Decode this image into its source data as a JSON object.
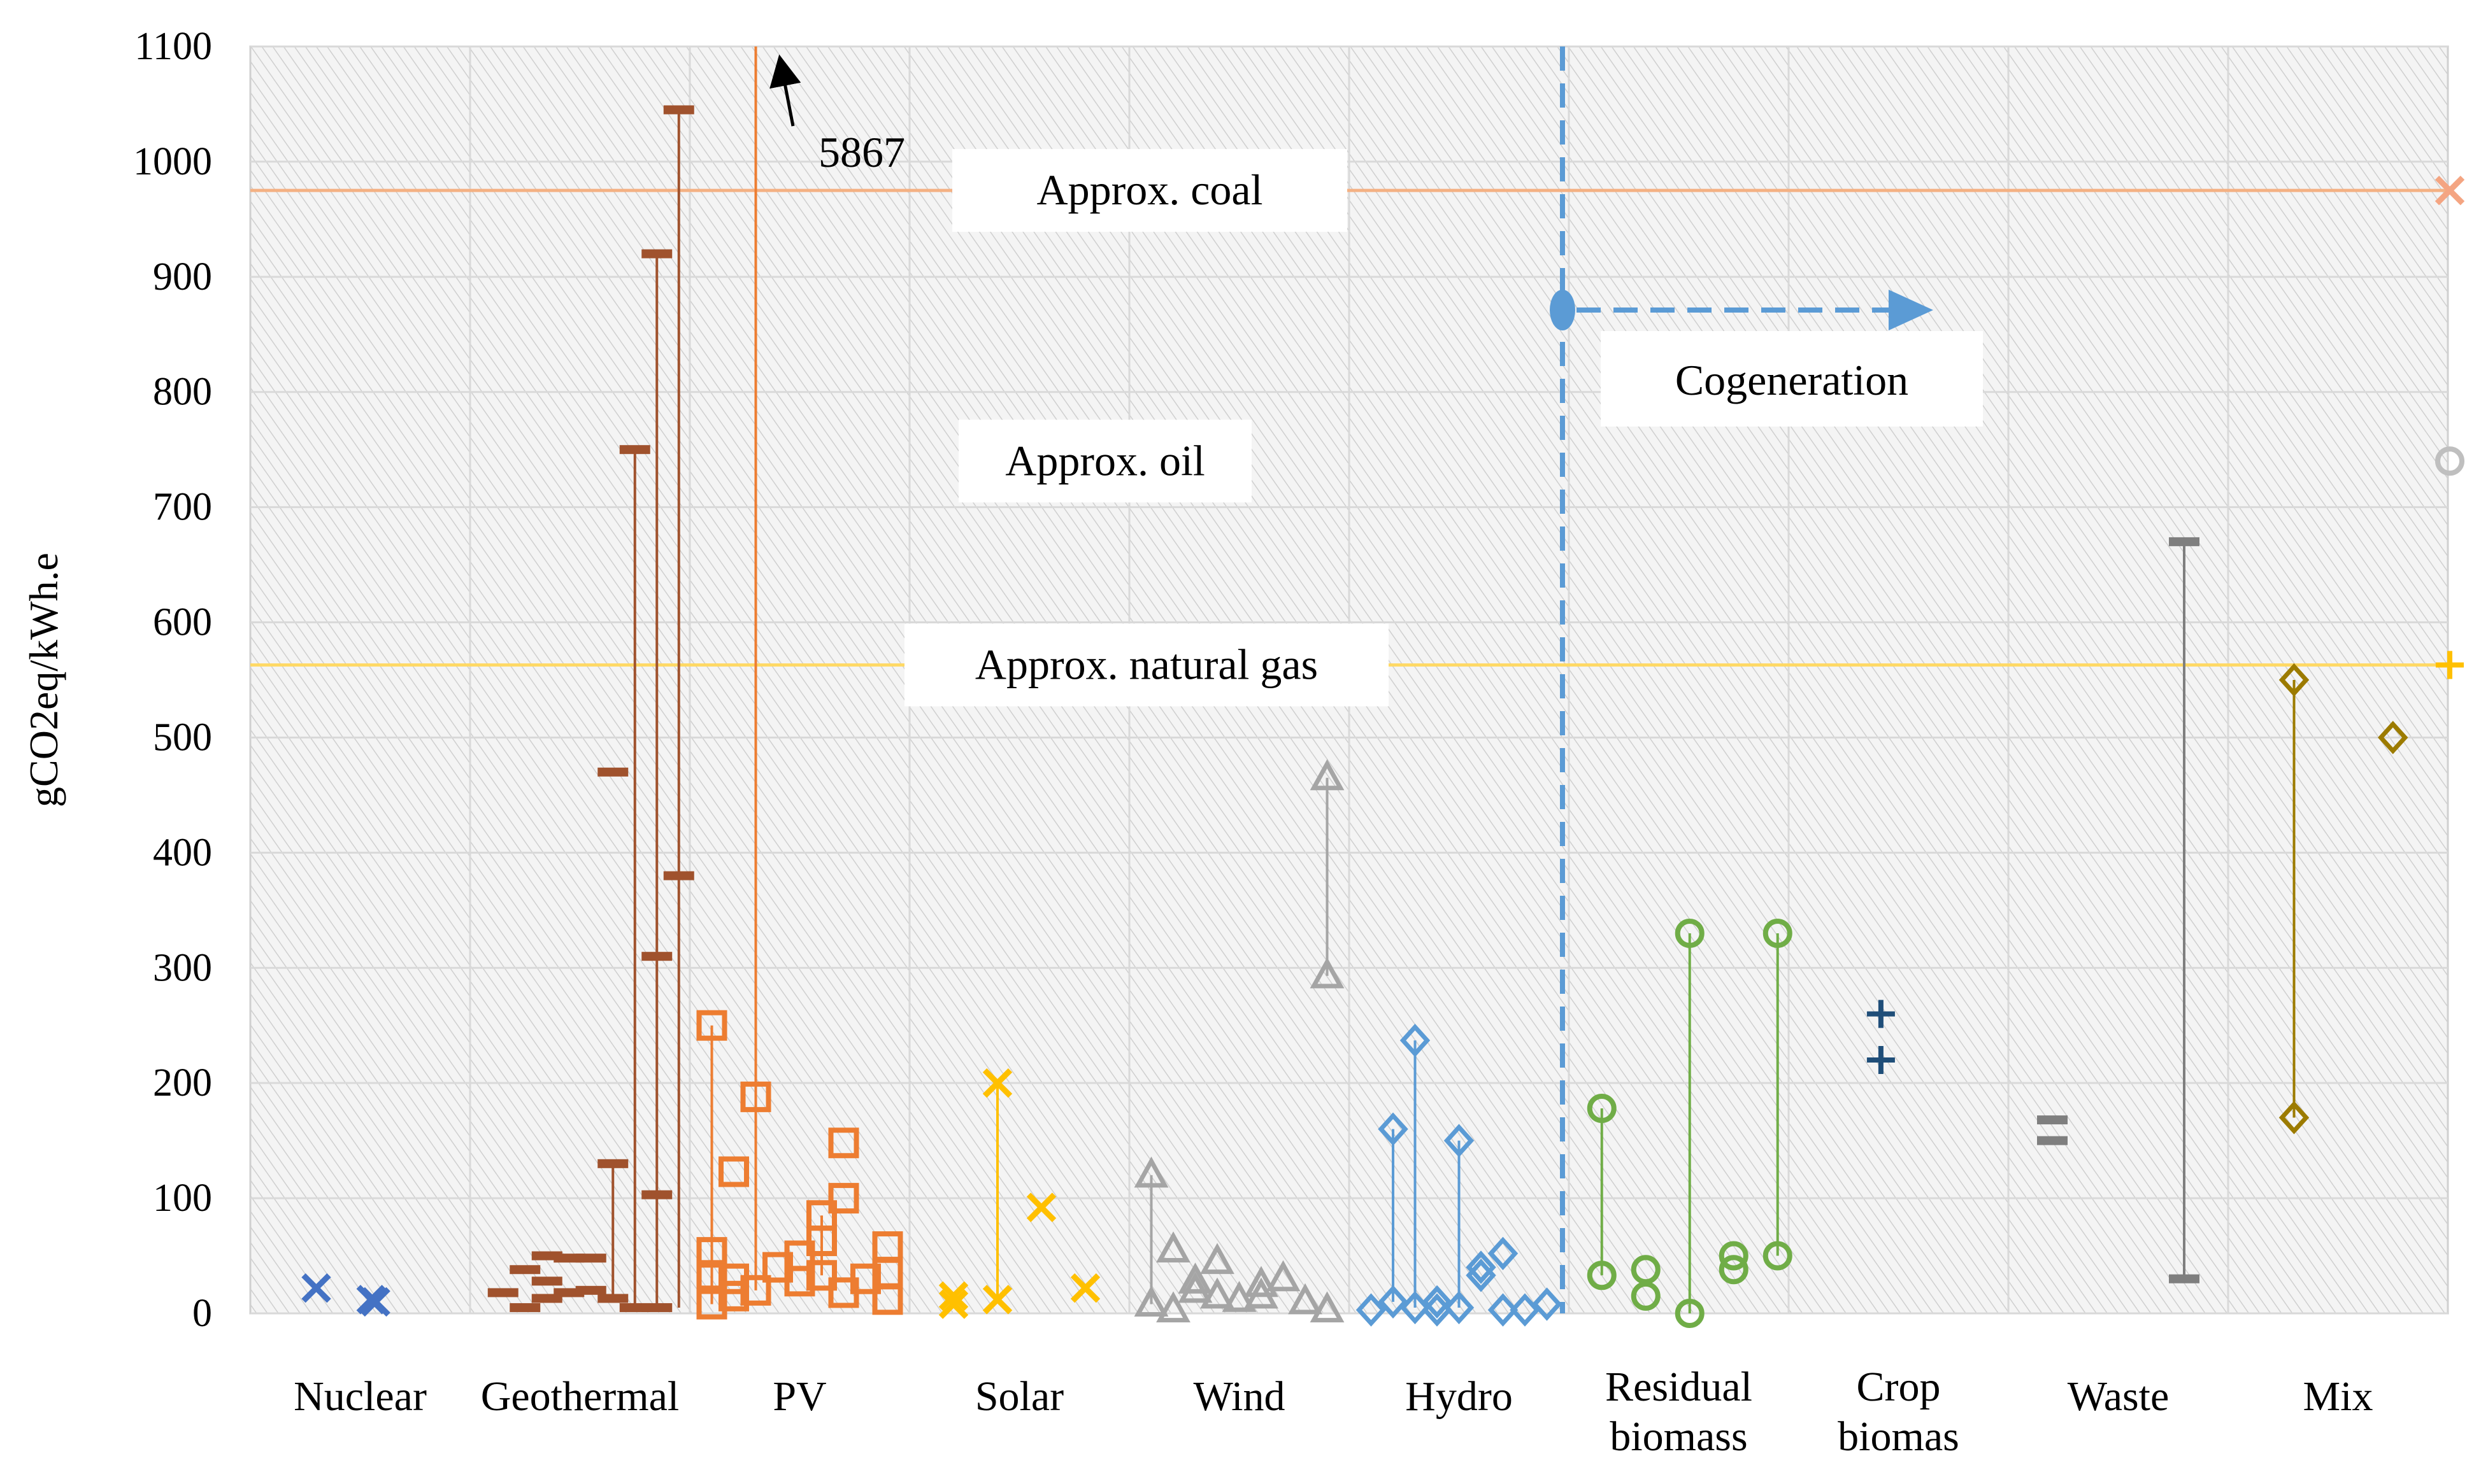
{
  "chart_data": {
    "type": "scatter",
    "title": "",
    "xlabel": "",
    "ylabel": "gCO2eq/kWh.e",
    "ylim": [
      0,
      1100
    ],
    "y_ticks": [
      "0",
      "100",
      "200",
      "300",
      "400",
      "500",
      "600",
      "700",
      "800",
      "900",
      "1000",
      "1100"
    ],
    "grid": true,
    "categories": [
      {
        "label": "Nuclear"
      },
      {
        "label": "Geothermal"
      },
      {
        "label": "PV"
      },
      {
        "label": "Solar"
      },
      {
        "label": "Wind"
      },
      {
        "label": "Hydro"
      },
      {
        "label": "Residual\nbiomass"
      },
      {
        "label": "Crop\nbiomas"
      },
      {
        "label": "Waste"
      },
      {
        "label": "Mix"
      }
    ],
    "reference_lines": [
      {
        "name": "coal",
        "value": 975,
        "label": "Approx. coal",
        "color": "#F4B183",
        "marker": "x",
        "marker_color": "#F4A582"
      },
      {
        "name": "oil",
        "value": 740,
        "label": "Approx. oil",
        "color": "#BFBFBF",
        "marker": "circle",
        "marker_color": "#BFBFBF"
      },
      {
        "name": "natural_gas",
        "value": 563,
        "label": "Approx. natural gas",
        "color": "#FFD966",
        "marker": "plus",
        "marker_color": "#FFC000"
      }
    ],
    "annotations": [
      {
        "text": "5867",
        "note": "off-scale PV value"
      },
      {
        "text": "Cogeneration",
        "note": "applies to biomass, waste and mix"
      }
    ],
    "series": [
      {
        "name": "Nuclear",
        "marker": "x",
        "color": "#4472C4",
        "points": [
          [
            0.3,
            22
          ],
          [
            0.55,
            12
          ],
          [
            0.57,
            10
          ]
        ],
        "ranges": []
      },
      {
        "name": "Geothermal",
        "marker": "dash",
        "color": "#A0522D",
        "points": [
          [
            0.15,
            18
          ],
          [
            0.25,
            5
          ],
          [
            0.25,
            38
          ],
          [
            0.35,
            13
          ],
          [
            0.35,
            28
          ],
          [
            0.35,
            50
          ],
          [
            0.45,
            18
          ],
          [
            0.45,
            48
          ],
          [
            0.55,
            48
          ],
          [
            0.55,
            20
          ],
          [
            0.65,
            130
          ],
          [
            0.65,
            470
          ],
          [
            0.65,
            13
          ],
          [
            0.75,
            750
          ],
          [
            0.75,
            5
          ],
          [
            0.85,
            310
          ],
          [
            0.85,
            920
          ],
          [
            0.85,
            103
          ],
          [
            0.85,
            5
          ],
          [
            0.95,
            380
          ],
          [
            0.95,
            1045
          ]
        ],
        "ranges": [
          [
            0.65,
            13,
            130
          ],
          [
            0.75,
            5,
            750
          ],
          [
            0.85,
            5,
            920
          ],
          [
            0.95,
            5,
            1045
          ]
        ]
      },
      {
        "name": "PV",
        "marker": "square",
        "color": "#ED7D31",
        "points": [
          [
            0.1,
            250
          ],
          [
            0.1,
            53
          ],
          [
            0.1,
            33
          ],
          [
            0.1,
            8
          ],
          [
            0.2,
            123
          ],
          [
            0.2,
            30
          ],
          [
            0.2,
            15
          ],
          [
            0.3,
            188
          ],
          [
            0.3,
            20
          ],
          [
            0.4,
            40
          ],
          [
            0.5,
            50
          ],
          [
            0.5,
            28
          ],
          [
            0.6,
            85
          ],
          [
            0.6,
            63
          ],
          [
            0.6,
            33
          ],
          [
            0.7,
            148
          ],
          [
            0.7,
            100
          ],
          [
            0.7,
            18
          ],
          [
            0.8,
            30
          ],
          [
            0.9,
            58
          ],
          [
            0.9,
            35
          ],
          [
            0.9,
            12
          ]
        ],
        "ranges": [
          [
            0.1,
            8,
            250
          ],
          [
            0.3,
            20,
            5867
          ],
          [
            0.6,
            33,
            85
          ]
        ]
      },
      {
        "name": "Solar",
        "marker": "x",
        "color": "#FFC000",
        "points": [
          [
            0.2,
            15
          ],
          [
            0.2,
            8
          ],
          [
            0.4,
            200
          ],
          [
            0.4,
            12
          ],
          [
            0.6,
            92
          ],
          [
            0.8,
            22
          ]
        ],
        "ranges": [
          [
            0.4,
            12,
            200
          ]
        ]
      },
      {
        "name": "Wind",
        "marker": "triangle",
        "color": "#A5A5A5",
        "points": [
          [
            0.1,
            120
          ],
          [
            0.1,
            8
          ],
          [
            0.2,
            55
          ],
          [
            0.2,
            3
          ],
          [
            0.3,
            28
          ],
          [
            0.3,
            20
          ],
          [
            0.4,
            45
          ],
          [
            0.4,
            15
          ],
          [
            0.5,
            12
          ],
          [
            0.6,
            25
          ],
          [
            0.6,
            15
          ],
          [
            0.7,
            30
          ],
          [
            0.8,
            10
          ],
          [
            0.9,
            465
          ],
          [
            0.9,
            293
          ],
          [
            0.9,
            3
          ]
        ],
        "ranges": [
          [
            0.1,
            8,
            120
          ],
          [
            0.9,
            293,
            465
          ]
        ]
      },
      {
        "name": "Hydro",
        "marker": "diamond",
        "color": "#5B9BD5",
        "points": [
          [
            0.1,
            3
          ],
          [
            0.2,
            160
          ],
          [
            0.2,
            10
          ],
          [
            0.3,
            237
          ],
          [
            0.3,
            5
          ],
          [
            0.4,
            3
          ],
          [
            0.4,
            10
          ],
          [
            0.5,
            150
          ],
          [
            0.5,
            5
          ],
          [
            0.6,
            33
          ],
          [
            0.6,
            40
          ],
          [
            0.7,
            52
          ],
          [
            0.7,
            3
          ],
          [
            0.8,
            3
          ],
          [
            0.9,
            8
          ]
        ],
        "ranges": [
          [
            0.2,
            10,
            160
          ],
          [
            0.3,
            5,
            237
          ],
          [
            0.5,
            5,
            150
          ]
        ]
      },
      {
        "name": "Residual biomass",
        "marker": "circle",
        "color": "#70AD47",
        "points": [
          [
            0.15,
            178
          ],
          [
            0.15,
            33
          ],
          [
            0.35,
            38
          ],
          [
            0.35,
            15
          ],
          [
            0.55,
            330
          ],
          [
            0.55,
            0
          ],
          [
            0.75,
            50
          ],
          [
            0.75,
            38
          ],
          [
            0.95,
            330
          ],
          [
            0.95,
            50
          ]
        ],
        "ranges": [
          [
            0.15,
            33,
            178
          ],
          [
            0.55,
            0,
            330
          ],
          [
            0.95,
            50,
            330
          ]
        ]
      },
      {
        "name": "Crop biomas",
        "marker": "plus",
        "color": "#1F4E79",
        "points": [
          [
            0.42,
            260
          ],
          [
            0.42,
            220
          ]
        ],
        "ranges": []
      },
      {
        "name": "Waste",
        "marker": "dash",
        "color": "#7F7F7F",
        "points": [
          [
            0.2,
            168
          ],
          [
            0.2,
            150
          ],
          [
            0.8,
            670
          ],
          [
            0.8,
            30
          ]
        ],
        "ranges": [
          [
            0.8,
            30,
            670
          ]
        ]
      },
      {
        "name": "Mix",
        "marker": "diamond",
        "color": "#9C7B00",
        "points": [
          [
            0.3,
            550
          ],
          [
            0.3,
            170
          ],
          [
            0.75,
            500
          ]
        ],
        "ranges": [
          [
            0.3,
            170,
            550
          ]
        ]
      }
    ]
  }
}
